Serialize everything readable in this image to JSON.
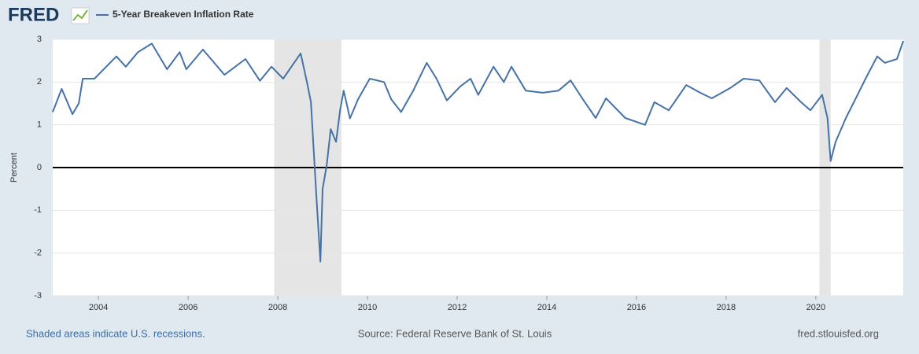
{
  "chart_data": {
    "type": "line",
    "logo": "FRED",
    "ylabel": "Percent",
    "footer_note": "Shaded areas indicate U.S. recessions.",
    "source": "Source: Federal Reserve Bank of St. Louis",
    "site": "fred.stlouisfed.org",
    "x": [
      2002.98,
      2003.18,
      2003.42,
      2003.56,
      2003.65,
      2003.91,
      2004.4,
      2004.61,
      2004.88,
      2005.19,
      2005.53,
      2005.81,
      2005.96,
      2006.33,
      2006.81,
      2007.28,
      2007.6,
      2007.86,
      2008.12,
      2008.33,
      2008.51,
      2008.65,
      2008.74,
      2008.82,
      2008.88,
      2008.95,
      2009.0,
      2009.09,
      2009.18,
      2009.3,
      2009.39,
      2009.47,
      2009.61,
      2009.79,
      2010.05,
      2010.37,
      2010.53,
      2010.75,
      2011.02,
      2011.32,
      2011.54,
      2011.77,
      2012.07,
      2012.3,
      2012.47,
      2012.81,
      2013.04,
      2013.21,
      2013.53,
      2013.91,
      2014.26,
      2014.53,
      2014.79,
      2015.09,
      2015.32,
      2015.75,
      2016.19,
      2016.4,
      2016.72,
      2017.11,
      2017.42,
      2017.68,
      2018.09,
      2018.39,
      2018.74,
      2019.09,
      2019.35,
      2019.67,
      2019.88,
      2020.14,
      2020.26,
      2020.33,
      2020.44,
      2020.67,
      2020.93,
      2021.11,
      2021.37,
      2021.54,
      2021.81,
      2021.95
    ],
    "series": [
      {
        "name": "5-Year Breakeven Inflation Rate",
        "color": "#4572a7",
        "values": [
          1.3,
          1.84,
          1.25,
          1.5,
          2.08,
          2.08,
          2.6,
          2.36,
          2.7,
          2.9,
          2.3,
          2.7,
          2.3,
          2.76,
          2.17,
          2.54,
          2.03,
          2.36,
          2.08,
          2.4,
          2.67,
          2.0,
          1.53,
          0.05,
          -1.0,
          -2.2,
          -0.5,
          0.05,
          0.9,
          0.6,
          1.35,
          1.8,
          1.15,
          1.6,
          2.08,
          2.0,
          1.6,
          1.3,
          1.8,
          2.45,
          2.08,
          1.57,
          1.9,
          2.08,
          1.7,
          2.36,
          2.0,
          2.36,
          1.8,
          1.75,
          1.8,
          2.04,
          1.62,
          1.16,
          1.62,
          1.16,
          1.0,
          1.53,
          1.34,
          1.93,
          1.75,
          1.62,
          1.86,
          2.08,
          2.04,
          1.53,
          1.86,
          1.53,
          1.34,
          1.7,
          1.16,
          0.15,
          0.6,
          1.16,
          1.7,
          2.08,
          2.6,
          2.45,
          2.54,
          2.96
        ]
      }
    ],
    "recessions": [
      [
        2007.92,
        2009.42
      ],
      [
        2020.08,
        2020.33
      ]
    ],
    "xlim": [
      2002.98,
      2021.95
    ],
    "xticks": [
      2004,
      2006,
      2008,
      2010,
      2012,
      2014,
      2016,
      2018,
      2020
    ],
    "ylim": [
      -3,
      3
    ],
    "yticks": [
      -3,
      -2,
      -1,
      0,
      1,
      2,
      3
    ],
    "grid": true
  }
}
